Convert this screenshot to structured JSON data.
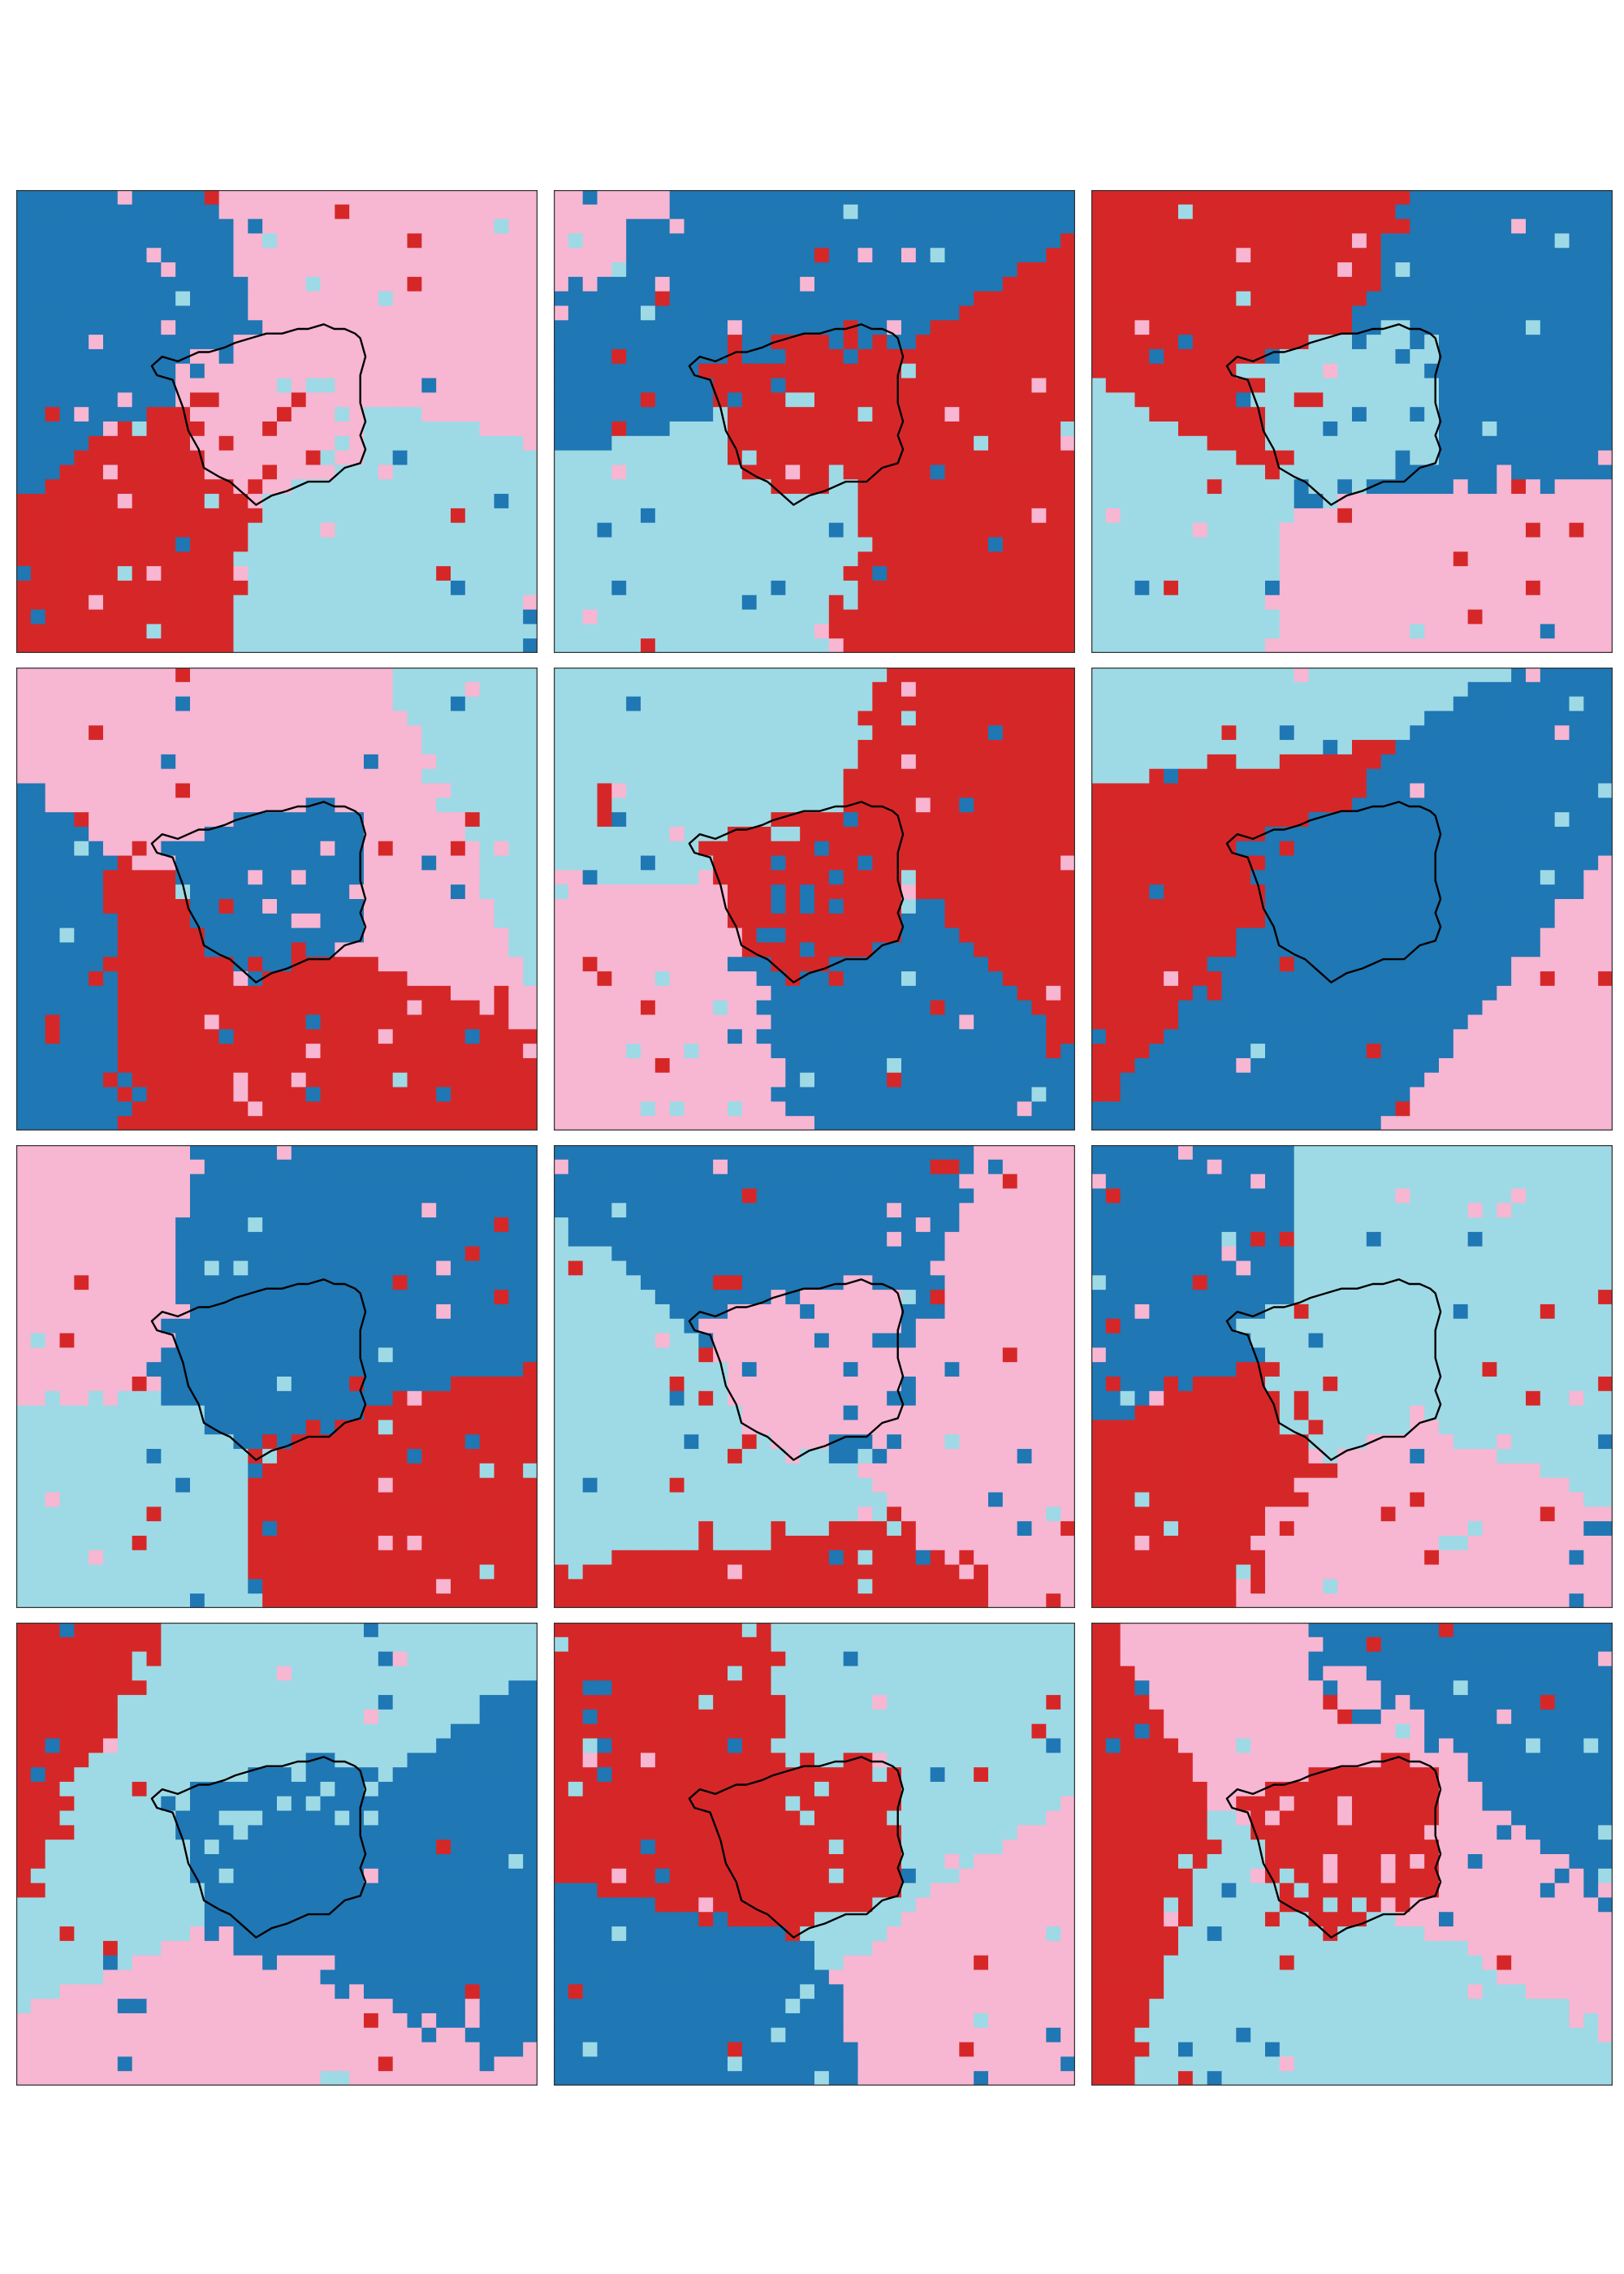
{
  "figure": {
    "layout": {
      "rows": 4,
      "cols": 3
    },
    "palette": {
      "dark_blue": "#1f77b4",
      "light_blue": "#9edae5",
      "pink": "#f7b6d2",
      "red": "#d62728"
    },
    "outline_color": "#000000",
    "frame_color": "#333333",
    "panels": [
      {
        "id": "r1c1",
        "dominant": [
          "dark_blue",
          "pink",
          "light_blue",
          "red"
        ],
        "region_fill": "pink"
      },
      {
        "id": "r1c2",
        "dominant": [
          "red",
          "light_blue",
          "dark_blue",
          "pink"
        ],
        "region_fill": "red"
      },
      {
        "id": "r1c3",
        "dominant": [
          "dark_blue",
          "red",
          "light_blue",
          "pink"
        ],
        "region_fill": "light_blue"
      },
      {
        "id": "r2c1",
        "dominant": [
          "red",
          "dark_blue",
          "light_blue",
          "pink"
        ],
        "region_fill": "dark_blue"
      },
      {
        "id": "r2c2",
        "dominant": [
          "light_blue",
          "red",
          "dark_blue",
          "pink"
        ],
        "region_fill": "red"
      },
      {
        "id": "r2c3",
        "dominant": [
          "pink",
          "dark_blue",
          "red",
          "light_blue"
        ],
        "region_fill": "dark_blue"
      },
      {
        "id": "r3c1",
        "dominant": [
          "dark_blue",
          "pink",
          "light_blue",
          "red"
        ],
        "region_fill": "dark_blue"
      },
      {
        "id": "r3c2",
        "dominant": [
          "red",
          "light_blue",
          "pink",
          "dark_blue"
        ],
        "region_fill": "pink"
      },
      {
        "id": "r3c3",
        "dominant": [
          "dark_blue",
          "light_blue",
          "pink",
          "red"
        ],
        "region_fill": "light_blue"
      },
      {
        "id": "r4c1",
        "dominant": [
          "dark_blue",
          "pink",
          "light_blue",
          "red"
        ],
        "region_fill": "dark_blue"
      },
      {
        "id": "r4c2",
        "dominant": [
          "light_blue",
          "red",
          "dark_blue",
          "pink"
        ],
        "region_fill": "red"
      },
      {
        "id": "r4c3",
        "dominant": [
          "light_blue",
          "red",
          "dark_blue",
          "pink"
        ],
        "region_fill": "red"
      }
    ]
  }
}
